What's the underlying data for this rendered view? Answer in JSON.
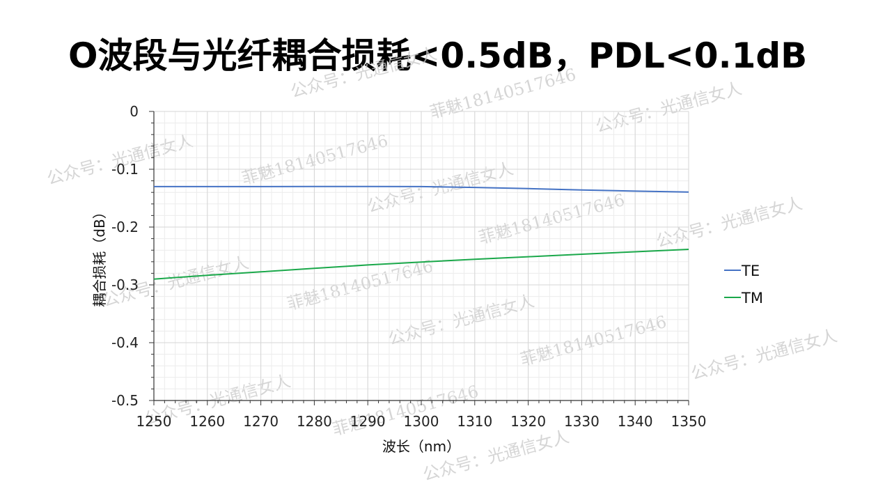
{
  "slide": {
    "title": "O波段与光纤耦合损耗<0.5dB，PDL<0.1dB"
  },
  "watermarks": {
    "account": "公众号：光通信女人",
    "contact": "菲魅18140517646"
  },
  "chart_data": {
    "type": "line",
    "title": "",
    "xlabel": "波长（nm）",
    "ylabel": "耦合损耗（dB）",
    "xlim": [
      1250,
      1350
    ],
    "ylim": [
      -0.5,
      0
    ],
    "x_ticks": [
      1250,
      1260,
      1270,
      1280,
      1290,
      1300,
      1310,
      1320,
      1330,
      1340,
      1350
    ],
    "y_ticks": [
      0,
      -0.1,
      -0.2,
      -0.3,
      -0.4,
      -0.5
    ],
    "y_tick_labels": [
      "0",
      "-0.1",
      "-0.2",
      "-0.3",
      "-0.4",
      "-0.5"
    ],
    "grid": true,
    "legend_position": "right",
    "series": [
      {
        "name": "TE",
        "color": "#4472c4",
        "x": [
          1250,
          1260,
          1270,
          1280,
          1290,
          1300,
          1310,
          1320,
          1330,
          1340,
          1350
        ],
        "values": [
          -0.13,
          -0.13,
          -0.13,
          -0.1298,
          -0.1298,
          -0.13,
          -0.1315,
          -0.1335,
          -0.1358,
          -0.1378,
          -0.1395
        ]
      },
      {
        "name": "TM",
        "color": "#1aa84a",
        "x": [
          1250,
          1260,
          1270,
          1280,
          1290,
          1300,
          1310,
          1320,
          1330,
          1340,
          1350
        ],
        "values": [
          -0.29,
          -0.2835,
          -0.2775,
          -0.2715,
          -0.2655,
          -0.2605,
          -0.2558,
          -0.2513,
          -0.247,
          -0.2428,
          -0.2385
        ]
      }
    ]
  }
}
